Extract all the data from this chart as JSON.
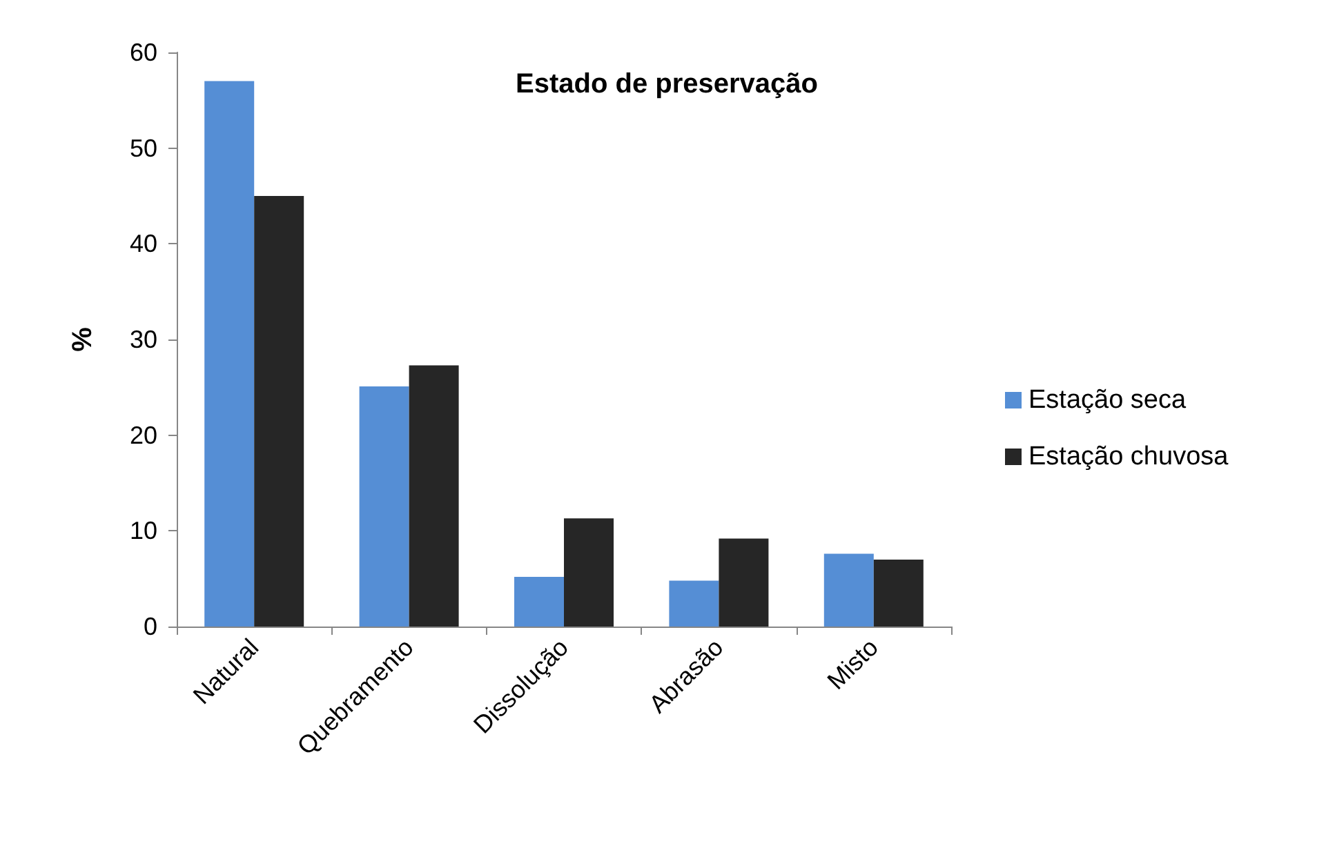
{
  "chart_data": {
    "type": "bar",
    "title": "Estado de preservação",
    "ylabel": "%",
    "categories": [
      "Natural",
      "Quebramento",
      "Dissolução",
      "Abrasão",
      "Misto"
    ],
    "series": [
      {
        "name": "Estação seca",
        "color": "#558ed5",
        "values": [
          57,
          25.1,
          5.2,
          4.8,
          7.6
        ]
      },
      {
        "name": "Estação chuvosa",
        "color": "#262626",
        "values": [
          45,
          27.3,
          11.3,
          9.2,
          7
        ]
      }
    ],
    "ylim": [
      0,
      60
    ],
    "yticks": [
      0,
      10,
      20,
      30,
      40,
      50,
      60
    ],
    "grid": false,
    "legend": "right"
  }
}
